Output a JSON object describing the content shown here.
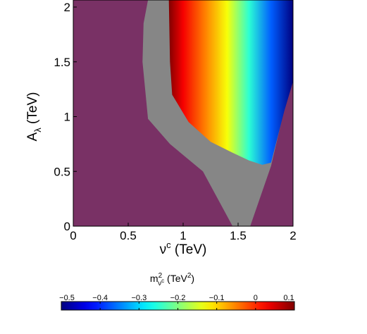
{
  "chart_data": {
    "type": "heatmap",
    "title": "",
    "xlabel": {
      "base": "ν",
      "sup": "c",
      "tail": " (TeV)"
    },
    "ylabel": {
      "base": "A",
      "sub": "λ",
      "tail": " (TeV)"
    },
    "xlim": [
      0,
      2
    ],
    "ylim": [
      0,
      2
    ],
    "xticks": [
      0,
      0.5,
      1,
      1.5,
      2
    ],
    "xtick_labels": [
      "0",
      "0.5",
      "1",
      "1.5",
      "2"
    ],
    "yticks": [
      0,
      0.5,
      1,
      1.5,
      2
    ],
    "ytick_labels": [
      "0",
      "0.5",
      "1",
      "1.5",
      "2"
    ],
    "grid": false,
    "background_region": {
      "color": "#793165"
    },
    "gray_region": {
      "color": "#868686",
      "polygon": [
        [
          0.68,
          2.0
        ],
        [
          0.64,
          1.85
        ],
        [
          0.63,
          1.5
        ],
        [
          0.68,
          0.98
        ],
        [
          0.88,
          0.75
        ],
        [
          1.18,
          0.5
        ],
        [
          1.45,
          0.0
        ],
        [
          1.61,
          0.0
        ],
        [
          1.8,
          0.55
        ],
        [
          1.94,
          1.15
        ],
        [
          2.0,
          1.32
        ],
        [
          2.0,
          2.0
        ]
      ]
    },
    "colored_region": {
      "description": "value encoded by color scale",
      "boundary": [
        [
          0.87,
          2.0
        ],
        [
          0.88,
          1.5
        ],
        [
          0.9,
          1.2
        ],
        [
          1.05,
          0.95
        ],
        [
          1.25,
          0.77
        ],
        [
          1.45,
          0.67
        ],
        [
          1.6,
          0.6
        ],
        [
          1.72,
          0.56
        ],
        [
          1.8,
          0.58
        ],
        [
          1.92,
          1.05
        ],
        [
          2.0,
          1.32
        ],
        [
          2.0,
          2.0
        ]
      ],
      "value_at_x": [
        [
          0.87,
          0.1
        ],
        [
          1.0,
          0.03
        ],
        [
          1.2,
          -0.05
        ],
        [
          1.4,
          -0.13
        ],
        [
          1.6,
          -0.25
        ],
        [
          1.8,
          -0.37
        ],
        [
          2.0,
          -0.5
        ]
      ]
    },
    "colorbar": {
      "label": {
        "base": "m",
        "sup": "2",
        "sub": "ν",
        "subsup": "c",
        "tail": " (TeV",
        "tailsup": "2",
        "end": ")"
      },
      "range": [
        -0.5,
        0.1
      ],
      "ticks": [
        -0.5,
        -0.4,
        -0.3,
        -0.2,
        -0.1,
        0,
        0.1
      ],
      "tick_labels": [
        "−0.5",
        "−0.4",
        "−0.3",
        "−0.2",
        "−0.1",
        "0",
        "0.1"
      ],
      "colormap": "jet",
      "position": "bottom"
    }
  }
}
